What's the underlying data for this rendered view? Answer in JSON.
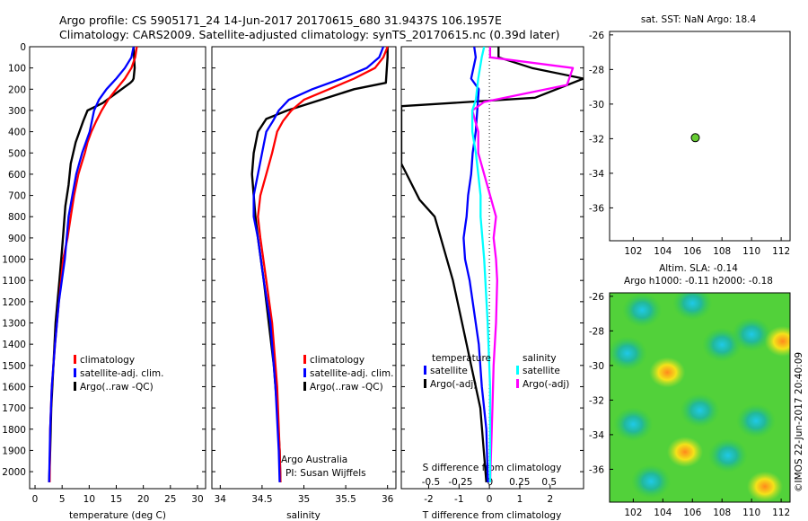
{
  "header": {
    "line1": "Argo profile: CS 5905171_24 14-Jun-2017 20170615_680 31.9437S 106.1957E",
    "line2": "Climatology: CARS2009. Satellite-adjusted climatology: synTS_20170615.nc (0.39d later)"
  },
  "chart_data": [
    {
      "type": "line",
      "name": "temperature-profile",
      "xlabel": "temperature (deg C)",
      "ylabel": "",
      "xlim": [
        -1,
        31.5
      ],
      "ylim": [
        2080,
        0
      ],
      "xticks": [
        "0",
        "5",
        "10",
        "15",
        "20",
        "25",
        "30"
      ],
      "yticks": [
        "0",
        "100",
        "200",
        "300",
        "400",
        "500",
        "600",
        "700",
        "800",
        "900",
        "1000",
        "1100",
        "1200",
        "1300",
        "1400",
        "1500",
        "1600",
        "1700",
        "1800",
        "1900",
        "2000"
      ],
      "legend": [
        "climatology",
        "satellite-adj. clim.",
        "Argo(..raw -QC)"
      ],
      "series": [
        {
          "name": "climatology",
          "color": "#ff0000",
          "x": [
            18.8,
            18.5,
            17.8,
            16.6,
            15.0,
            13.5,
            12.3,
            11.3,
            10.4,
            9.7,
            9.2,
            8.6,
            8.0,
            7.2,
            6.6,
            6.0,
            5.2,
            4.4,
            3.7,
            3.1,
            2.8,
            2.7
          ],
          "y": [
            0,
            50,
            100,
            150,
            200,
            250,
            300,
            350,
            400,
            450,
            500,
            550,
            600,
            700,
            800,
            900,
            1000,
            1200,
            1400,
            1600,
            1800,
            2050
          ]
        },
        {
          "name": "satellite-adj. clim.",
          "color": "#0000ff",
          "x": [
            18.2,
            17.8,
            16.6,
            15.0,
            13.2,
            11.8,
            10.9,
            10.1,
            9.4,
            8.7,
            7.6,
            6.9,
            6.2,
            5.5,
            4.4,
            3.7,
            3.1,
            2.8,
            2.6
          ],
          "y": [
            0,
            50,
            100,
            150,
            200,
            250,
            300,
            400,
            450,
            500,
            600,
            700,
            800,
            1000,
            1200,
            1400,
            1600,
            1800,
            2050
          ]
        },
        {
          "name": "Argo(..raw -QC)",
          "color": "#000000",
          "x": [
            18.2,
            18.3,
            18.4,
            18.2,
            18.0,
            17.6,
            12.5,
            9.7,
            8.9,
            7.5,
            6.6,
            6.2,
            5.6,
            5.3,
            5.0,
            4.5,
            3.8,
            3.4,
            3.0,
            2.8,
            2.6
          ],
          "y": [
            0,
            50,
            100,
            150,
            160,
            170,
            265,
            300,
            350,
            450,
            550,
            650,
            750,
            850,
            950,
            1100,
            1300,
            1500,
            1700,
            1900,
            2050
          ]
        }
      ]
    },
    {
      "type": "line",
      "name": "salinity-profile",
      "xlabel": "salinity",
      "xlim": [
        33.9,
        36.1
      ],
      "ylim": [
        2080,
        0
      ],
      "xticks": [
        "34",
        "34.5",
        "35",
        "35.5",
        "36"
      ],
      "legend": [
        "climatology",
        "satellite-adj. clim.",
        "Argo(..raw -QC)"
      ],
      "annotation": [
        "Argo Australia",
        "PI: Susan Wijffels"
      ],
      "series": [
        {
          "name": "climatology",
          "color": "#ff0000",
          "x": [
            36.0,
            35.95,
            35.85,
            35.6,
            35.3,
            35.0,
            34.85,
            34.75,
            34.68,
            34.62,
            34.55,
            34.48,
            34.45,
            34.48,
            34.55,
            34.62,
            34.68,
            34.71,
            34.72
          ],
          "y": [
            0,
            50,
            100,
            150,
            200,
            250,
            300,
            350,
            400,
            500,
            600,
            700,
            800,
            900,
            1100,
            1300,
            1600,
            1900,
            2050
          ]
        },
        {
          "name": "satellite-adj. clim.",
          "color": "#0000ff",
          "x": [
            35.95,
            35.9,
            35.75,
            35.45,
            35.1,
            34.82,
            34.7,
            34.63,
            34.55,
            34.5,
            34.45,
            34.4,
            34.4,
            34.45,
            34.52,
            34.6,
            34.66,
            34.7,
            34.71
          ],
          "y": [
            0,
            50,
            100,
            150,
            200,
            250,
            300,
            350,
            400,
            500,
            600,
            700,
            800,
            900,
            1100,
            1300,
            1600,
            1900,
            2050
          ]
        },
        {
          "name": "Argo(..raw -QC)",
          "color": "#000000",
          "x": [
            36.0,
            36.0,
            35.98,
            35.6,
            34.8,
            34.55,
            34.45,
            34.4,
            34.38,
            34.4,
            34.42,
            34.45,
            34.52,
            34.58,
            34.64,
            34.68,
            34.71,
            34.72
          ],
          "y": [
            0,
            50,
            170,
            200,
            300,
            340,
            400,
            500,
            600,
            700,
            800,
            900,
            1100,
            1300,
            1500,
            1700,
            1900,
            2050
          ]
        }
      ]
    },
    {
      "type": "line",
      "name": "difference-profile",
      "xlabel": "T difference from climatology",
      "xlabel_top": "S difference from climatology",
      "t_xlim": [
        -2.9,
        3.1
      ],
      "s_xlim": [
        -0.75,
        0.79
      ],
      "ylim": [
        2080,
        0
      ],
      "t_xticks": [
        "-2",
        "-1",
        "0",
        "1",
        "2"
      ],
      "s_xticks": [
        "-0.5",
        "-0.25",
        "0",
        "0.25",
        "0.5"
      ],
      "legend_titles": [
        "temperature",
        "salinity"
      ],
      "legend": [
        "satellite",
        "Argo(-adj)",
        "satellite",
        "Argo(-adj)"
      ],
      "series": [
        {
          "name": "temperature satellite",
          "color": "#0000ff",
          "units": "T",
          "x": [
            -0.5,
            -0.45,
            -0.6,
            -0.35,
            -0.4,
            -0.45,
            -0.55,
            -0.6,
            -0.7,
            -0.75,
            -0.8,
            -0.85,
            -0.8,
            -0.65,
            -0.55,
            -0.45,
            -0.35,
            -0.25,
            -0.1,
            -0.05
          ],
          "y": [
            0,
            50,
            150,
            200,
            300,
            400,
            500,
            600,
            700,
            800,
            850,
            900,
            1000,
            1100,
            1200,
            1300,
            1400,
            1600,
            1800,
            2050
          ]
        },
        {
          "name": "temperature Argo(-adj)",
          "color": "#000000",
          "units": "T",
          "x": [
            0.3,
            0.3,
            1.4,
            3.1,
            1.5,
            -2.9,
            -2.9,
            -2.9,
            -2.9,
            -2.3,
            -1.8,
            -1.6,
            -1.2,
            -0.9,
            -0.6,
            -0.3,
            -0.1
          ],
          "y": [
            0,
            50,
            100,
            150,
            240,
            280,
            350,
            450,
            550,
            720,
            800,
            900,
            1100,
            1300,
            1500,
            1700,
            2050
          ]
        },
        {
          "name": "salinity satellite",
          "color": "#00ffff",
          "units": "S",
          "x": [
            -0.05,
            -0.07,
            -0.1,
            -0.12,
            -0.15,
            -0.15,
            -0.12,
            -0.1,
            -0.08,
            -0.08,
            -0.05,
            -0.02,
            0.0,
            0.0
          ],
          "y": [
            0,
            50,
            150,
            250,
            300,
            400,
            500,
            600,
            700,
            800,
            1000,
            1300,
            1600,
            2050
          ]
        },
        {
          "name": "salinity Argo(-adj)",
          "color": "#ff00ff",
          "units": "S",
          "x": [
            0.0,
            0.0,
            0.7,
            0.65,
            -0.05,
            -0.15,
            -0.1,
            -0.1,
            -0.05,
            0.0,
            0.05,
            0.03,
            0.05,
            0.06,
            0.05,
            0.03,
            0.02,
            0.0
          ],
          "y": [
            0,
            50,
            100,
            180,
            260,
            300,
            400,
            500,
            600,
            700,
            800,
            900,
            1000,
            1100,
            1300,
            1500,
            1700,
            2050
          ]
        }
      ]
    },
    {
      "type": "scatter",
      "name": "location-map",
      "title": "sat. SST: NaN Argo: 18.4",
      "xlim": [
        100.4,
        112.6
      ],
      "ylim": [
        -37.9,
        -25.8
      ],
      "xticks": [
        "102",
        "104",
        "106",
        "108",
        "110",
        "112"
      ],
      "yticks": [
        "-26",
        "-28",
        "-30",
        "-32",
        "-34",
        "-36"
      ],
      "points": [
        {
          "lon": 106.1957,
          "lat": -31.9437,
          "color": "#66cc33"
        }
      ]
    },
    {
      "type": "heatmap",
      "name": "sla-map",
      "title1": "Altim. SLA: -0.14",
      "title2": "Argo h1000: -0.11 h2000: -0.18",
      "xlim": [
        100.4,
        112.6
      ],
      "ylim": [
        -37.9,
        -25.8
      ],
      "xticks": [
        "102",
        "104",
        "106",
        "108",
        "110",
        "112"
      ],
      "yticks": [
        "-26",
        "-28",
        "-30",
        "-32",
        "-34",
        "-36"
      ],
      "features": [
        {
          "lon": 102.6,
          "lat": -26.8,
          "kind": "low"
        },
        {
          "lon": 106.0,
          "lat": -26.4,
          "kind": "low"
        },
        {
          "lon": 108.0,
          "lat": -28.8,
          "kind": "low"
        },
        {
          "lon": 110.0,
          "lat": -28.2,
          "kind": "low"
        },
        {
          "lon": 101.6,
          "lat": -29.3,
          "kind": "low"
        },
        {
          "lon": 102.0,
          "lat": -33.4,
          "kind": "low"
        },
        {
          "lon": 103.2,
          "lat": -36.7,
          "kind": "low"
        },
        {
          "lon": 106.5,
          "lat": -32.6,
          "kind": "low"
        },
        {
          "lon": 108.4,
          "lat": -35.2,
          "kind": "low"
        },
        {
          "lon": 110.3,
          "lat": -33.2,
          "kind": "low"
        },
        {
          "lon": 104.3,
          "lat": -30.4,
          "kind": "high"
        },
        {
          "lon": 112.1,
          "lat": -28.6,
          "kind": "high"
        },
        {
          "lon": 105.5,
          "lat": -35.0,
          "kind": "high"
        },
        {
          "lon": 110.9,
          "lat": -37.0,
          "kind": "high"
        }
      ]
    }
  ],
  "footer": "©IMOS 22-Jun-2017 20:40:09"
}
